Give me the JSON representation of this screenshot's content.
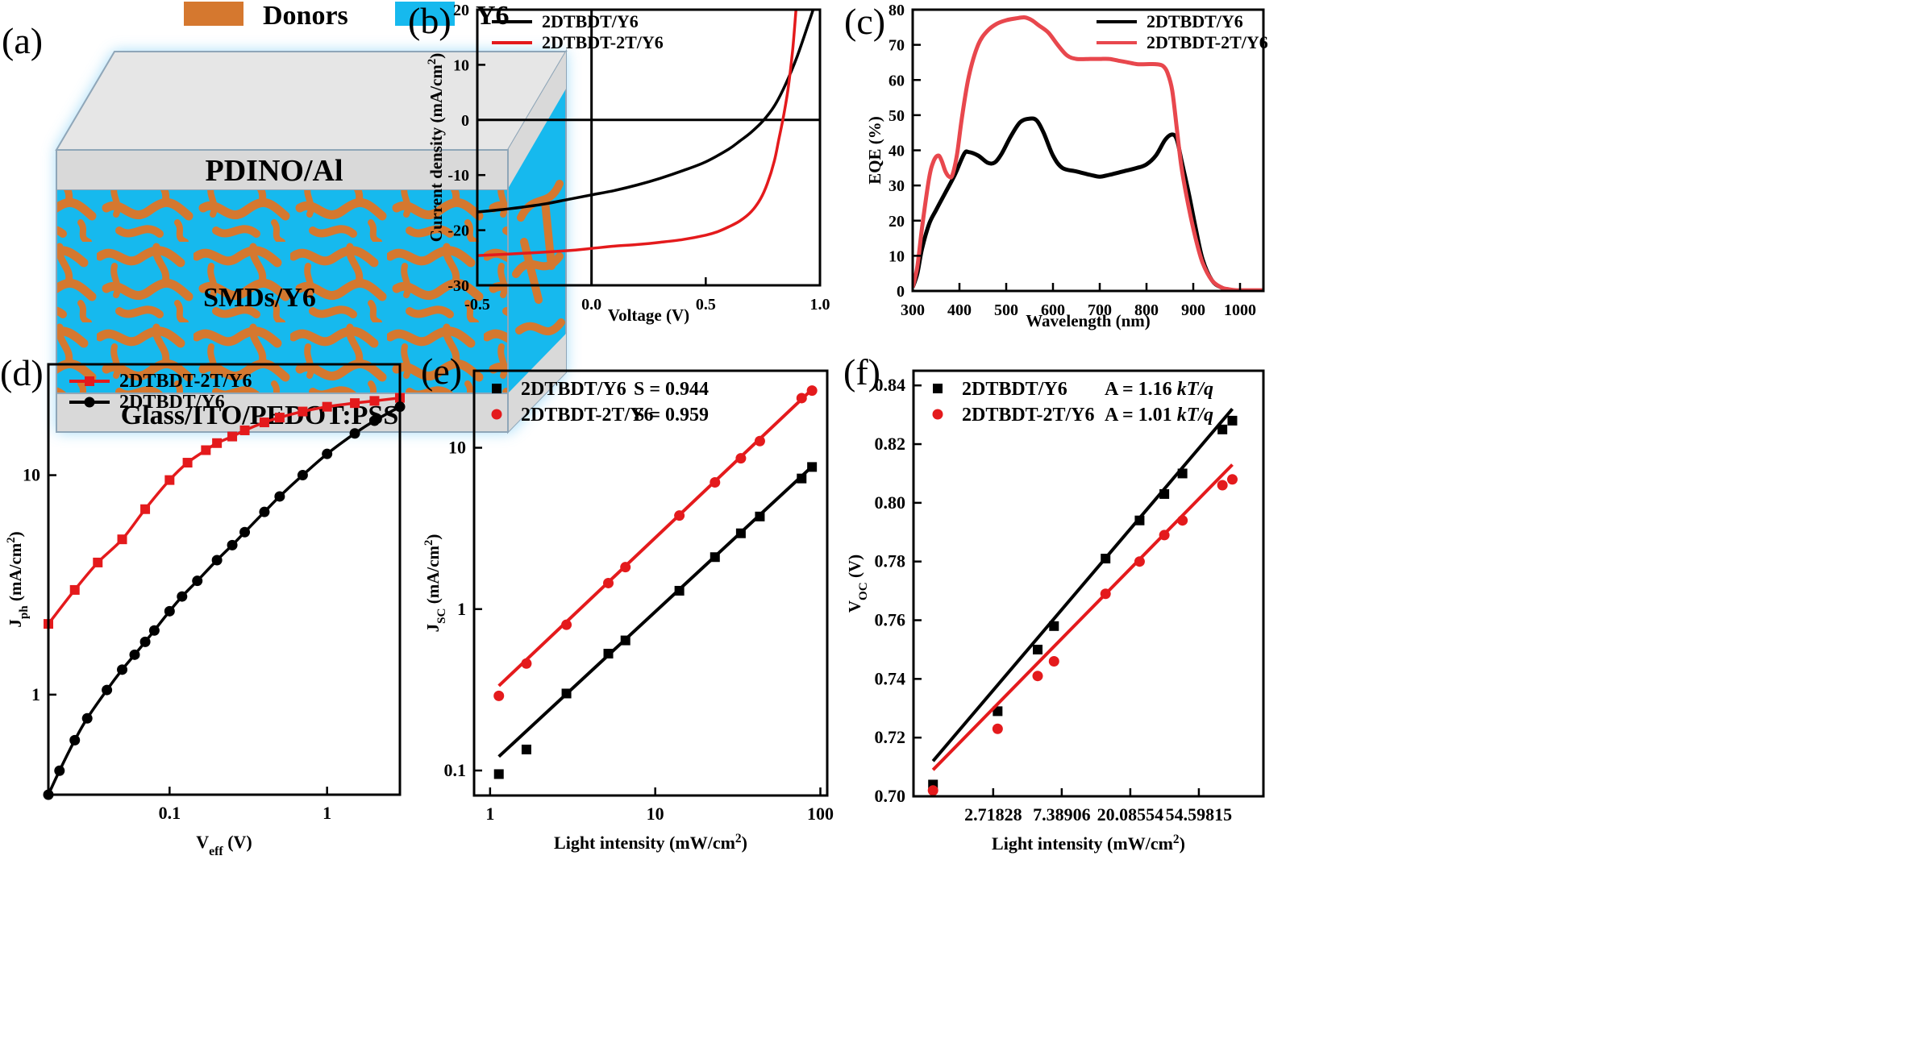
{
  "colors": {
    "black": "#000000",
    "red": "#e41a1c",
    "eqe_red": "#e8474d",
    "donor_orange": "#d5782f",
    "y6_blue": "#16b9ee",
    "glow_blue": "#8fd3f6",
    "layer_gray": "#d9d9d9"
  },
  "panel_a": {
    "label": "(a)",
    "legend": [
      {
        "name": "Donors",
        "color": "#d5782f"
      },
      {
        "name": "Y6",
        "color": "#16b9ee"
      }
    ],
    "layers": {
      "top": "PDINO/Al",
      "middle": "SMDs/Y6",
      "bottom": "Glass/ITO/PEDOT:PSS"
    }
  },
  "chart_data": [
    {
      "panel": "(b)",
      "type": "line",
      "xlabel": "Voltage (V)",
      "ylabel": "Current density (mA/cm²)",
      "xlim": [
        -0.5,
        1.0
      ],
      "ylim": [
        -30,
        20
      ],
      "xticks": [
        "-0.5",
        "0.0",
        "0.5",
        "1.0"
      ],
      "yticks": [
        "-30",
        "-20",
        "-10",
        "0",
        "10",
        "20"
      ],
      "legend_position": "top-left",
      "series": [
        {
          "name": "2DTBDT/Y6",
          "color": "#000000",
          "x": [
            -0.5,
            -0.4,
            -0.3,
            -0.2,
            -0.1,
            0,
            0.1,
            0.2,
            0.3,
            0.4,
            0.5,
            0.6,
            0.65,
            0.7,
            0.75,
            0.8,
            0.85,
            0.9,
            0.95,
            0.97
          ],
          "y": [
            -16.7,
            -16.3,
            -15.8,
            -15.2,
            -14.4,
            -13.6,
            -12.8,
            -11.8,
            -10.6,
            -9.2,
            -7.6,
            -5.3,
            -3.8,
            -2.2,
            -0.2,
            2.5,
            6.5,
            11.5,
            17.5,
            20
          ]
        },
        {
          "name": "2DTBDT-2T/Y6",
          "color": "#e41a1c",
          "x": [
            -0.5,
            -0.3,
            -0.1,
            0,
            0.1,
            0.2,
            0.3,
            0.4,
            0.5,
            0.55,
            0.6,
            0.65,
            0.7,
            0.74,
            0.77,
            0.8,
            0.82,
            0.84,
            0.86,
            0.88,
            0.895
          ],
          "y": [
            -24.6,
            -24.2,
            -23.7,
            -23.3,
            -22.9,
            -22.6,
            -22.2,
            -21.7,
            -20.9,
            -20.3,
            -19.4,
            -18.3,
            -16.6,
            -14.3,
            -11.5,
            -7.5,
            -3.5,
            0.6,
            5.5,
            12.5,
            20
          ]
        }
      ]
    },
    {
      "panel": "(c)",
      "type": "line",
      "xlabel": "Wavelength (nm)",
      "ylabel": "EQE (%)",
      "xlim": [
        300,
        1050
      ],
      "ylim": [
        0,
        80
      ],
      "xticks": [
        "300",
        "400",
        "500",
        "600",
        "700",
        "800",
        "900",
        "1000"
      ],
      "yticks": [
        "0",
        "10",
        "20",
        "30",
        "40",
        "50",
        "60",
        "70",
        "80"
      ],
      "legend_position": "top-right",
      "series": [
        {
          "name": "2DTBDT/Y6",
          "color": "#000000",
          "x": [
            300,
            310,
            320,
            335,
            350,
            370,
            390,
            410,
            420,
            440,
            460,
            475,
            490,
            510,
            530,
            550,
            565,
            580,
            600,
            620,
            650,
            680,
            700,
            720,
            750,
            780,
            800,
            820,
            840,
            855,
            865,
            875,
            890,
            905,
            920,
            940,
            960,
            980,
            1000,
            1050
          ],
          "y": [
            1,
            5,
            12,
            19,
            23,
            28,
            33,
            39,
            39.5,
            38.5,
            36.5,
            36.5,
            39,
            44,
            48,
            49,
            48.5,
            45,
            38.5,
            35,
            34,
            33,
            32.5,
            33,
            34,
            35,
            36,
            38.5,
            43,
            44.5,
            43,
            37,
            28,
            18,
            9,
            3,
            1,
            0.2,
            0,
            0
          ]
        },
        {
          "name": "2DTBDT-2T/Y6",
          "color": "#e8474d",
          "x": [
            300,
            310,
            320,
            335,
            345,
            355,
            362,
            370,
            378,
            385,
            395,
            405,
            420,
            440,
            460,
            480,
            500,
            520,
            540,
            555,
            570,
            590,
            610,
            630,
            650,
            680,
            700,
            720,
            740,
            760,
            780,
            800,
            820,
            835,
            845,
            855,
            865,
            875,
            890,
            905,
            920,
            940,
            960,
            975,
            985,
            1000,
            1050
          ],
          "y": [
            1,
            7,
            18,
            32,
            37,
            38.5,
            37,
            34,
            32.5,
            33,
            39,
            49,
            61,
            70,
            74,
            76,
            77,
            77.5,
            77.8,
            77,
            75.5,
            73.5,
            70,
            67,
            66,
            66,
            66,
            66,
            65.5,
            65,
            64.5,
            64.5,
            64.5,
            64,
            62,
            57,
            46,
            35,
            24,
            15,
            8,
            3,
            1,
            0.5,
            0.3,
            0.2,
            0.2
          ]
        }
      ]
    },
    {
      "panel": "(d)",
      "type": "line",
      "xlabel": "Veff (V)",
      "ylabel": "Jph (mA/cm²)",
      "xscale": "log",
      "yscale": "log",
      "xlim": [
        0.017,
        2.9
      ],
      "ylim": [
        0.35,
        32
      ],
      "xticks": [
        "0.1",
        "1"
      ],
      "yticks": [
        "1",
        "10"
      ],
      "legend_position": "top-left",
      "series": [
        {
          "name": "2DTBDT-2T/Y6",
          "color": "#e41a1c",
          "marker": "square",
          "x": [
            0.017,
            0.025,
            0.035,
            0.05,
            0.07,
            0.1,
            0.13,
            0.17,
            0.2,
            0.25,
            0.3,
            0.4,
            0.5,
            0.7,
            1.0,
            1.5,
            2.0,
            2.9
          ],
          "y": [
            2.1,
            3.0,
            4.0,
            5.1,
            7.0,
            9.5,
            11.4,
            13.0,
            14.0,
            15.0,
            16.0,
            17.4,
            18.3,
            19.5,
            20.5,
            21.3,
            21.8,
            22.5
          ]
        },
        {
          "name": "2DTBDT/Y6",
          "color": "#000000",
          "marker": "circle",
          "x": [
            0.017,
            0.02,
            0.025,
            0.03,
            0.04,
            0.05,
            0.06,
            0.07,
            0.08,
            0.1,
            0.12,
            0.15,
            0.2,
            0.25,
            0.3,
            0.4,
            0.5,
            0.7,
            1.0,
            1.5,
            2.0,
            2.9
          ],
          "y": [
            0.35,
            0.45,
            0.62,
            0.78,
            1.05,
            1.3,
            1.52,
            1.74,
            1.96,
            2.4,
            2.8,
            3.3,
            4.1,
            4.8,
            5.5,
            6.8,
            8.0,
            10.0,
            12.5,
            15.5,
            17.7,
            20.5
          ]
        }
      ]
    },
    {
      "panel": "(e)",
      "type": "scatter",
      "xlabel": "Light intensity (mW/cm²)",
      "ylabel": "JSC (mA/cm²)",
      "xscale": "log",
      "yscale": "log",
      "xlim": [
        0.8,
        110
      ],
      "ylim": [
        0.07,
        30
      ],
      "xticks": [
        "1",
        "10",
        "100"
      ],
      "yticks": [
        "0.1",
        "1",
        "10"
      ],
      "legend_position": "top-left",
      "series": [
        {
          "name": "2DTBDT/Y6",
          "annotation": "S = 0.944",
          "color": "#000000",
          "marker": "square",
          "x": [
            1.13,
            1.66,
            2.9,
            5.2,
            6.6,
            14,
            23,
            33,
            43,
            77,
            89
          ],
          "y": [
            0.095,
            0.135,
            0.3,
            0.53,
            0.64,
            1.3,
            2.1,
            2.95,
            3.75,
            6.45,
            7.6
          ],
          "fit": {
            "x": [
              1.13,
              89
            ],
            "y": [
              0.122,
              7.65
            ]
          }
        },
        {
          "name": "2DTBDT-2T/Y6",
          "annotation": "S = 0.959",
          "color": "#e41a1c",
          "marker": "circle",
          "x": [
            1.13,
            1.66,
            2.9,
            5.2,
            6.6,
            14,
            23,
            33,
            43,
            77,
            89
          ],
          "y": [
            0.29,
            0.46,
            0.8,
            1.45,
            1.82,
            3.8,
            6.1,
            8.6,
            11.0,
            20.3,
            22.6
          ],
          "fit": {
            "x": [
              1.13,
              89
            ],
            "y": [
              0.335,
              23.0
            ]
          }
        }
      ]
    },
    {
      "panel": "(f)",
      "type": "scatter",
      "xlabel": "Light intensity (mW/cm²)",
      "ylabel": "VOC (V)",
      "xscale": "log",
      "xlim": [
        0.85,
        140
      ],
      "ylim": [
        0.7,
        0.845
      ],
      "xticks": [
        "2.71828",
        "7.38906",
        "20.08554",
        "54.59815"
      ],
      "yticks": [
        "0.70",
        "0.72",
        "0.74",
        "0.76",
        "0.78",
        "0.80",
        "0.82",
        "0.84"
      ],
      "legend_position": "top-left",
      "series": [
        {
          "name": "2DTBDT/Y6",
          "annotation": "A = 1.16 kT/q",
          "color": "#000000",
          "marker": "square",
          "x": [
            1.13,
            2.9,
            5.2,
            6.6,
            14,
            23,
            33,
            43,
            77,
            89
          ],
          "y": [
            0.704,
            0.729,
            0.75,
            0.758,
            0.781,
            0.794,
            0.803,
            0.81,
            0.825,
            0.828
          ],
          "fit": {
            "x": [
              1.13,
              89
            ],
            "y": [
              0.712,
              0.832
            ]
          }
        },
        {
          "name": "2DTBDT-2T/Y6",
          "annotation": "A = 1.01 kT/q",
          "color": "#e41a1c",
          "marker": "circle",
          "x": [
            1.13,
            2.9,
            5.2,
            6.6,
            14,
            23,
            33,
            43,
            77,
            89
          ],
          "y": [
            0.702,
            0.723,
            0.741,
            0.746,
            0.769,
            0.78,
            0.789,
            0.794,
            0.806,
            0.808
          ],
          "fit": {
            "x": [
              1.13,
              89
            ],
            "y": [
              0.709,
              0.813
            ]
          }
        }
      ]
    }
  ]
}
